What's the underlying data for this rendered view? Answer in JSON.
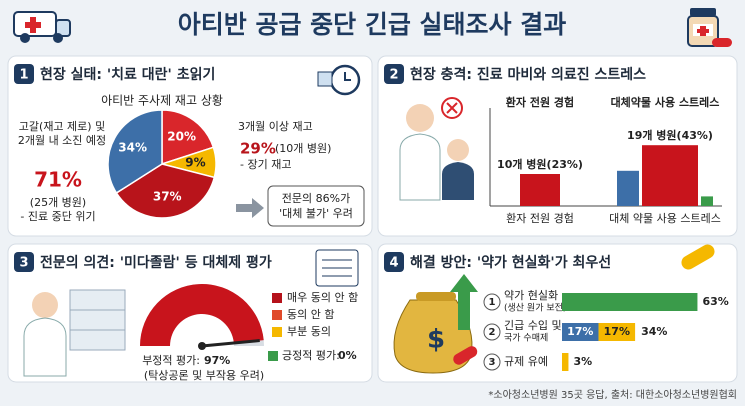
{
  "header": {
    "title": "아티반 공급 중단 긴급 실태조사 결과"
  },
  "panel1": {
    "number": "1",
    "title": "현장 실태: '치료 대란' 초읽기",
    "chart_title": "아티반 주사제 재고 상황",
    "slices": [
      {
        "value": 20,
        "label": "20%",
        "color": "#d9262b"
      },
      {
        "value": 9,
        "label": "9%",
        "color": "#f5b800"
      },
      {
        "value": 37,
        "label": "37%",
        "color": "#b8141b"
      },
      {
        "value": 34,
        "label": "34%",
        "color": "#3d6fa8"
      }
    ],
    "left_note": {
      "lines": [
        "고갈(재고 제로) 및",
        "2개월 내 소진 예정"
      ],
      "share": {
        "value": 71,
        "label": "71%"
      },
      "detail": [
        "(25개 병원)",
        "- 진료 중단 위기"
      ]
    },
    "right_note": {
      "title": "3개월 이상 재고",
      "share": {
        "value": 29,
        "label": "29%"
      },
      "detail": [
        "(10개 병원)",
        "- 장기 재고"
      ]
    },
    "callout": [
      "전문의 86%가",
      "'대체 불가' 우려"
    ]
  },
  "panel2": {
    "number": "2",
    "title": "현장 충격: 진료 마비와 의료진 스트레스",
    "groups": [
      {
        "top_label": "환자 전원 경험",
        "bottom_label": "환자 전원 경험",
        "bars": [
          {
            "value": 10,
            "label": "10개 병원(23%)",
            "color": "#c8141c"
          }
        ]
      },
      {
        "top_label": "대체약물 사용 스트레스",
        "bottom_label": "대체 약물 사용 스트레스",
        "bars": [
          {
            "value": 11,
            "color": "#3d6fa8"
          },
          {
            "value": 19,
            "label": "19개 병원(43%)",
            "color": "#c8141c"
          },
          {
            "value": 3,
            "color": "#3a9b4a"
          }
        ]
      }
    ]
  },
  "panel3": {
    "number": "3",
    "title": "전문의 의견: '미다졸람' 등 대체제 평가",
    "legend": [
      {
        "name": "매우 동의 안 함",
        "color": "#b5121b"
      },
      {
        "name": "동의 안 함",
        "color": "#e04a2a"
      },
      {
        "name": "부분 동의",
        "color": "#f5b800"
      }
    ],
    "negative": {
      "label": "부정적 평가:",
      "value": 97,
      "value_label": "97%",
      "note": "(탁상공론 및 부작용 우려)",
      "color": "#c8141c"
    },
    "positive": {
      "label": "긍정적 평가:",
      "value": 0,
      "value_label": "0%",
      "color": "#3a9b4a"
    }
  },
  "panel4": {
    "number": "4",
    "title": "해결 방안: '약가 현실화'가 최우선",
    "rows": [
      {
        "rank": "1",
        "label": [
          "약가 현실화",
          "(생산 원가 보전)"
        ],
        "segments": [
          {
            "value": 63,
            "label": "63%",
            "color": "#3a9b4a"
          }
        ]
      },
      {
        "rank": "2",
        "label": [
          "긴급 수입 및",
          "국가 수매제"
        ],
        "segments": [
          {
            "value": 17,
            "label": "17%",
            "color": "#3d6fa8"
          },
          {
            "value": 17,
            "label": "17%",
            "color": "#f5b800"
          }
        ],
        "total": {
          "value": 34,
          "label": "34%"
        }
      },
      {
        "rank": "3",
        "label": [
          "규제 유예"
        ],
        "segments": [
          {
            "value": 3,
            "label": "3%",
            "color": "#f5b800"
          }
        ]
      }
    ]
  },
  "footer": "*소아청소년병원 35곳 응답, 출처: 대한소아청소년병원협회"
}
